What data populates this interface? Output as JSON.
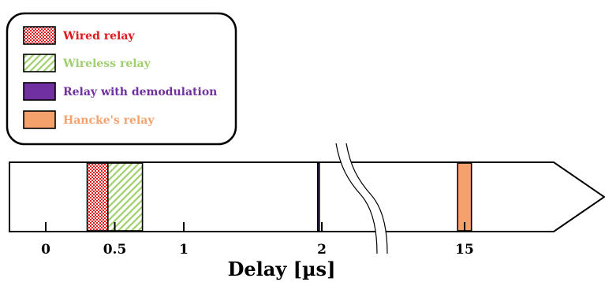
{
  "chart_data": {
    "type": "timeline",
    "xlabel": "Delay [µs]",
    "ticks": [
      "0",
      "0.5",
      "1",
      "2",
      "15"
    ],
    "axis_break": "between 2 and 15",
    "legend": [
      {
        "label": "Wired relay",
        "color": "#e0181c",
        "pattern": "checkered"
      },
      {
        "label": "Wireless relay",
        "color": "#9fcf6e",
        "pattern": "diagonal-hatch"
      },
      {
        "label": "Relay with demodulation",
        "color": "#7030a0",
        "pattern": "solid"
      },
      {
        "label": "Hancke's relay",
        "color": "#f4a16c",
        "pattern": "solid"
      }
    ],
    "bars": [
      {
        "series": "Wired relay",
        "start_us": 0.3,
        "end_us": 0.45
      },
      {
        "series": "Wireless relay",
        "start_us": 0.45,
        "end_us": 0.7
      },
      {
        "series": "Relay with demodulation",
        "start_us": 1.97,
        "end_us": 2.04
      },
      {
        "series": "Hancke's relay",
        "start_us": 14.95,
        "end_us": 15.05
      }
    ]
  }
}
